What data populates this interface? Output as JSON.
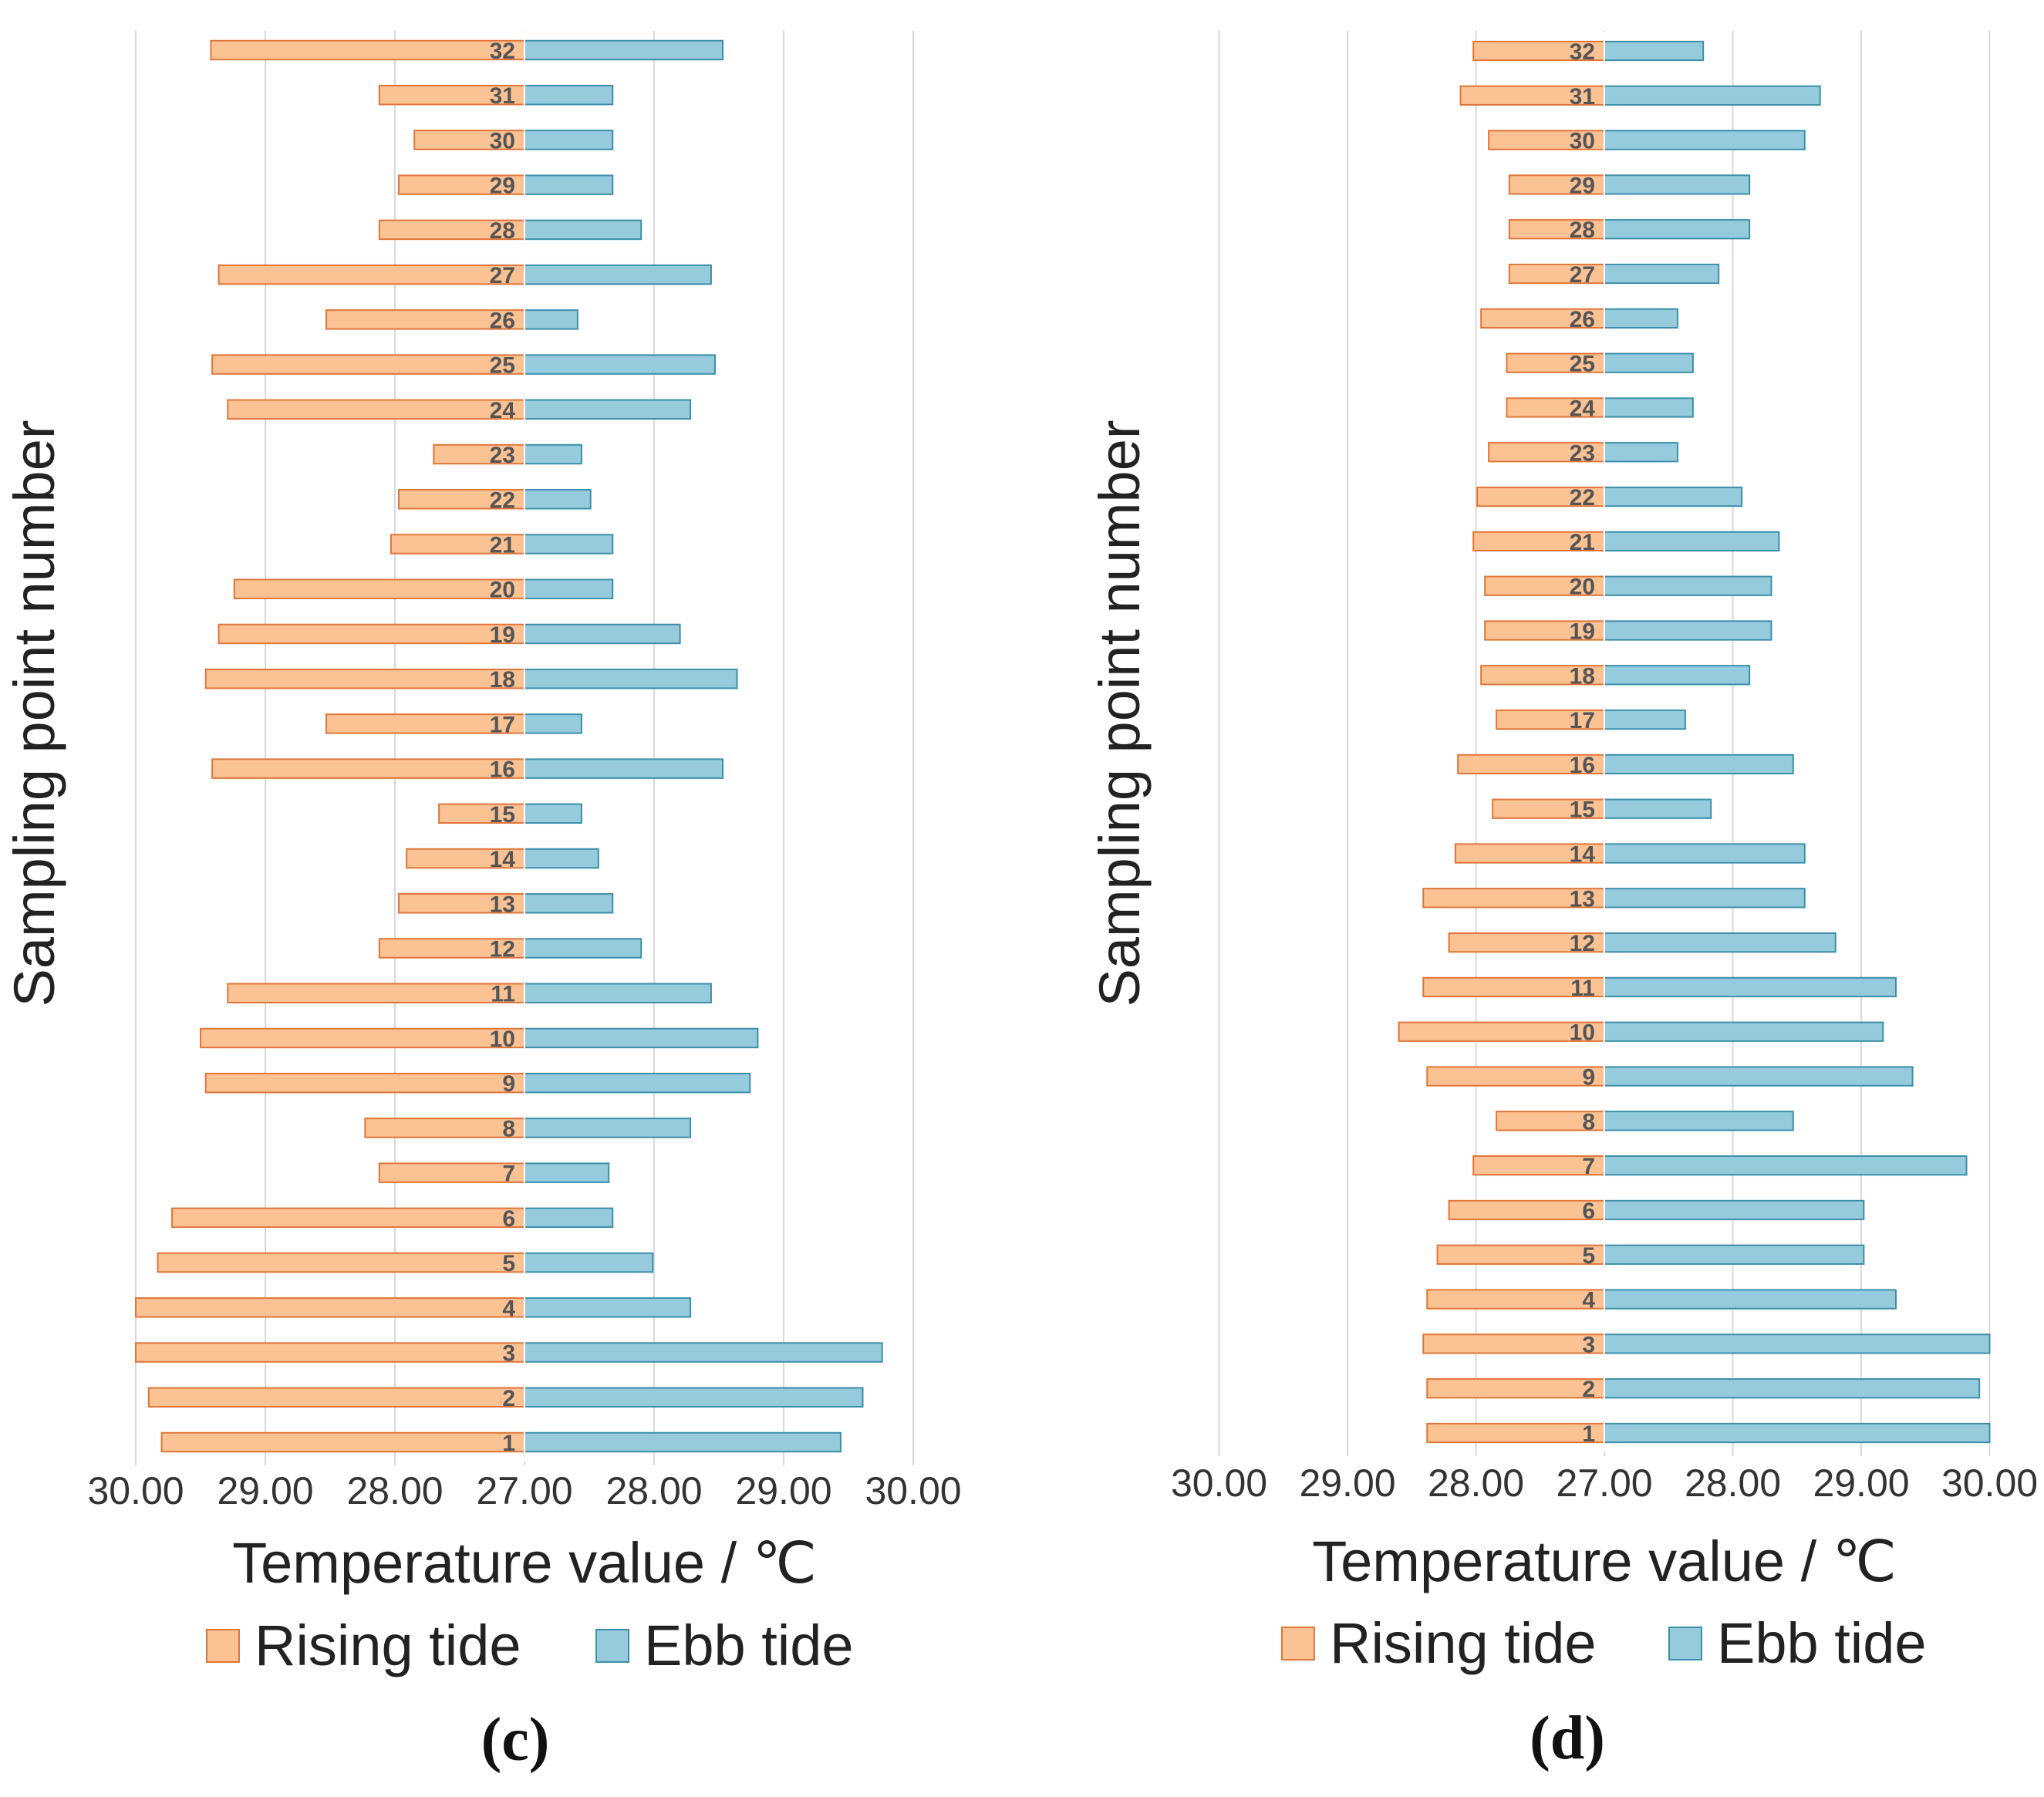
{
  "chart_data": [
    {
      "type": "bar",
      "panel_label": "(c)",
      "categories": [
        "1",
        "2",
        "3",
        "4",
        "5",
        "6",
        "7",
        "8",
        "9",
        "10",
        "11",
        "12",
        "13",
        "14",
        "15",
        "16",
        "17",
        "18",
        "19",
        "20",
        "21",
        "22",
        "23",
        "24",
        "25",
        "26",
        "27",
        "28",
        "29",
        "30",
        "31",
        "32"
      ],
      "series": [
        {
          "name": "Rising tide",
          "color": "#FBC294",
          "stroke": "#E0763A",
          "values": [
            29.8,
            29.9,
            30.0,
            30.0,
            29.83,
            29.72,
            28.12,
            28.23,
            29.46,
            29.5,
            29.29,
            28.12,
            27.97,
            27.91,
            27.66,
            29.41,
            28.53,
            29.46,
            29.36,
            29.24,
            28.03,
            27.97,
            27.7,
            29.29,
            29.41,
            28.53,
            29.36,
            28.12,
            27.97,
            27.85,
            28.12,
            29.42
          ]
        },
        {
          "name": "Ebb tide",
          "color": "#96CBDD",
          "stroke": "#3C8FAA",
          "values": [
            29.44,
            29.61,
            29.76,
            28.28,
            27.99,
            27.68,
            27.65,
            28.28,
            28.74,
            28.8,
            28.44,
            27.9,
            27.68,
            27.57,
            27.44,
            28.53,
            27.44,
            28.64,
            28.2,
            27.68,
            27.68,
            27.51,
            27.44,
            28.28,
            28.47,
            27.41,
            28.44,
            27.9,
            27.68,
            27.68,
            27.68,
            28.53
          ]
        }
      ],
      "x_tick_labels": [
        "30.00",
        "29.00",
        "28.00",
        "27.00",
        "28.00",
        "29.00",
        "30.00"
      ],
      "xlabel": "Temperature value / ℃",
      "ylabel": "Sampling point number",
      "xlim": [
        27.0,
        30.0
      ],
      "legend": [
        "Rising tide",
        "Ebb tide"
      ]
    },
    {
      "type": "bar",
      "panel_label": "(d)",
      "categories": [
        "1",
        "2",
        "3",
        "4",
        "5",
        "6",
        "7",
        "8",
        "9",
        "10",
        "11",
        "12",
        "13",
        "14",
        "15",
        "16",
        "17",
        "18",
        "19",
        "20",
        "21",
        "22",
        "23",
        "24",
        "25",
        "26",
        "27",
        "28",
        "29",
        "30",
        "31",
        "32"
      ],
      "series": [
        {
          "name": "Rising tide",
          "color": "#FBC294",
          "stroke": "#E0763A",
          "values": [
            28.38,
            28.38,
            28.41,
            28.38,
            28.3,
            28.21,
            28.02,
            27.84,
            28.38,
            28.6,
            28.41,
            28.21,
            28.41,
            28.16,
            27.87,
            28.14,
            27.84,
            27.96,
            27.93,
            27.93,
            28.02,
            27.99,
            27.9,
            27.76,
            27.76,
            27.96,
            27.74,
            27.74,
            27.74,
            27.9,
            28.12,
            28.02
          ]
        },
        {
          "name": "Ebb tide",
          "color": "#96CBDD",
          "stroke": "#3C8FAA",
          "values": [
            30.0,
            29.92,
            30.0,
            29.27,
            29.02,
            29.02,
            29.82,
            28.47,
            29.4,
            29.17,
            29.27,
            28.8,
            28.56,
            28.56,
            27.83,
            28.47,
            27.63,
            28.13,
            28.3,
            28.3,
            28.36,
            28.07,
            27.57,
            27.69,
            27.69,
            27.57,
            27.89,
            28.13,
            28.13,
            28.56,
            28.68,
            27.77
          ]
        }
      ],
      "x_tick_labels": [
        "30.00",
        "29.00",
        "28.00",
        "27.00",
        "28.00",
        "29.00",
        "30.00"
      ],
      "xlabel": "Temperature value / ℃",
      "ylabel": "Sampling point number",
      "xlim": [
        27.0,
        30.0
      ],
      "legend": [
        "Rising tide",
        "Ebb tide"
      ]
    }
  ]
}
